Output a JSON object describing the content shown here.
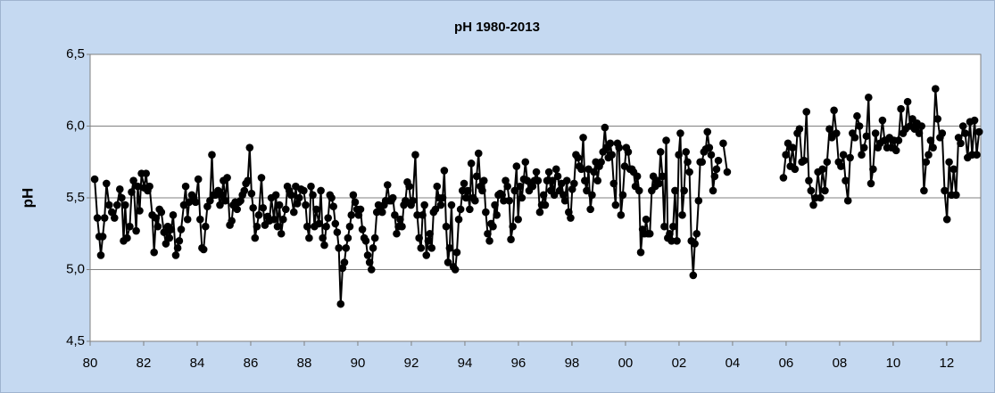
{
  "chart_data": {
    "type": "line",
    "title": "pH 1980-2013",
    "y_label": "pH",
    "color": "#000000",
    "grid": true,
    "markers": true,
    "xlim": [
      1980,
      2013.27
    ],
    "ylim": [
      4.5,
      6.5
    ],
    "xticks": [
      {
        "value": 1980,
        "label": "80"
      },
      {
        "value": 1982,
        "label": "82"
      },
      {
        "value": 1984,
        "label": "84"
      },
      {
        "value": 1986,
        "label": "86"
      },
      {
        "value": 1988,
        "label": "88"
      },
      {
        "value": 1990,
        "label": "90"
      },
      {
        "value": 1992,
        "label": "92"
      },
      {
        "value": 1994,
        "label": "94"
      },
      {
        "value": 1996,
        "label": "96"
      },
      {
        "value": 1998,
        "label": "98"
      },
      {
        "value": 2000,
        "label": "00"
      },
      {
        "value": 2002,
        "label": "02"
      },
      {
        "value": 2004,
        "label": "04"
      },
      {
        "value": 2006,
        "label": "06"
      },
      {
        "value": 2008,
        "label": "08"
      },
      {
        "value": 2010,
        "label": "10"
      },
      {
        "value": 2012,
        "label": "12"
      }
    ],
    "yticks": [
      {
        "value": 4.5,
        "label": "4,5"
      },
      {
        "value": 5.0,
        "label": "5,0"
      },
      {
        "value": 5.5,
        "label": "5,5"
      },
      {
        "value": 6.0,
        "label": "6,0"
      },
      {
        "value": 6.5,
        "label": "6,5"
      }
    ],
    "x": [
      1980.17,
      1980.27,
      1980.34,
      1980.4,
      1980.47,
      1980.54,
      1980.61,
      1980.71,
      1980.81,
      1980.91,
      1981.01,
      1981.11,
      1981.18,
      1981.25,
      1981.31,
      1981.38,
      1981.48,
      1981.55,
      1981.62,
      1981.72,
      1981.78,
      1981.85,
      1981.92,
      1982.02,
      1982.09,
      1982.15,
      1982.22,
      1982.32,
      1982.39,
      1982.46,
      1982.53,
      1982.59,
      1982.66,
      1982.76,
      1982.83,
      1982.9,
      1982.96,
      1983.03,
      1983.1,
      1983.2,
      1983.27,
      1983.33,
      1983.4,
      1983.5,
      1983.57,
      1983.64,
      1983.7,
      1983.8,
      1983.87,
      1983.94,
      1984.04,
      1984.11,
      1984.18,
      1984.24,
      1984.31,
      1984.38,
      1984.48,
      1984.55,
      1984.61,
      1984.68,
      1984.78,
      1984.85,
      1984.92,
      1984.98,
      1985.05,
      1985.12,
      1985.22,
      1985.29,
      1985.35,
      1985.42,
      1985.49,
      1985.56,
      1985.62,
      1985.69,
      1985.76,
      1985.82,
      1985.89,
      1985.96,
      1986.03,
      1986.09,
      1986.16,
      1986.23,
      1986.3,
      1986.4,
      1986.46,
      1986.53,
      1986.63,
      1986.7,
      1986.77,
      1986.87,
      1986.94,
      1987.0,
      1987.07,
      1987.14,
      1987.21,
      1987.31,
      1987.37,
      1987.44,
      1987.51,
      1987.61,
      1987.68,
      1987.74,
      1987.81,
      1987.88,
      1987.98,
      1988.05,
      1988.11,
      1988.18,
      1988.25,
      1988.32,
      1988.38,
      1988.45,
      1988.55,
      1988.62,
      1988.69,
      1988.75,
      1988.82,
      1988.89,
      1988.96,
      1989.02,
      1989.09,
      1989.16,
      1989.23,
      1989.29,
      1989.36,
      1989.43,
      1989.5,
      1989.56,
      1989.63,
      1989.7,
      1989.76,
      1989.83,
      1989.9,
      1989.97,
      1990.03,
      1990.1,
      1990.17,
      1990.24,
      1990.3,
      1990.37,
      1990.44,
      1990.51,
      1990.57,
      1990.64,
      1990.71,
      1990.77,
      1990.84,
      1990.91,
      1990.98,
      1991.04,
      1991.11,
      1991.18,
      1991.25,
      1991.31,
      1991.38,
      1991.45,
      1991.52,
      1991.58,
      1991.65,
      1991.72,
      1991.78,
      1991.85,
      1991.92,
      1991.99,
      1992.05,
      1992.15,
      1992.22,
      1992.29,
      1992.36,
      1992.42,
      1992.49,
      1992.56,
      1992.63,
      1992.69,
      1992.76,
      1992.83,
      1992.9,
      1992.96,
      1993.03,
      1993.1,
      1993.17,
      1993.23,
      1993.3,
      1993.37,
      1993.43,
      1993.5,
      1993.57,
      1993.64,
      1993.7,
      1993.77,
      1993.84,
      1993.91,
      1993.97,
      1994.04,
      1994.11,
      1994.18,
      1994.24,
      1994.31,
      1994.38,
      1994.44,
      1994.51,
      1994.58,
      1994.65,
      1994.71,
      1994.78,
      1994.85,
      1994.92,
      1994.98,
      1995.05,
      1995.12,
      1995.19,
      1995.25,
      1995.32,
      1995.39,
      1995.45,
      1995.52,
      1995.59,
      1995.66,
      1995.72,
      1995.79,
      1995.86,
      1995.93,
      1995.99,
      1996.06,
      1996.13,
      1996.2,
      1996.26,
      1996.33,
      1996.4,
      1996.46,
      1996.53,
      1996.6,
      1996.67,
      1996.73,
      1996.8,
      1996.87,
      1996.94,
      1997.0,
      1997.07,
      1997.14,
      1997.21,
      1997.27,
      1997.34,
      1997.41,
      1997.47,
      1997.54,
      1997.61,
      1997.68,
      1997.74,
      1997.81,
      1997.88,
      1997.95,
      1998.01,
      1998.08,
      1998.15,
      1998.22,
      1998.28,
      1998.35,
      1998.42,
      1998.48,
      1998.55,
      1998.62,
      1998.69,
      1998.75,
      1998.82,
      1998.89,
      1998.96,
      1999.02,
      1999.09,
      1999.16,
      1999.23,
      1999.29,
      1999.36,
      1999.43,
      1999.49,
      1999.56,
      1999.63,
      1999.7,
      1999.76,
      1999.83,
      1999.9,
      1999.97,
      2000.03,
      2000.1,
      2000.17,
      2000.24,
      2000.3,
      2000.37,
      2000.44,
      2000.51,
      2000.57,
      2000.64,
      2000.71,
      2000.77,
      2000.84,
      2000.91,
      2000.98,
      2001.04,
      2001.11,
      2001.18,
      2001.25,
      2001.31,
      2001.38,
      2001.45,
      2001.52,
      2001.58,
      2001.65,
      2001.72,
      2001.78,
      2001.85,
      2001.92,
      2001.99,
      2002.05,
      2002.12,
      2002.19,
      2002.26,
      2002.32,
      2002.39,
      2002.46,
      2002.53,
      2002.59,
      2002.66,
      2002.73,
      2002.79,
      2002.86,
      2002.93,
      2003.0,
      2003.06,
      2003.13,
      2003.2,
      2003.27,
      2003.33,
      2003.4,
      2003.47,
      2003.55,
      2003.65,
      2003.8,
      2004.8,
      2005.9,
      2005.99,
      2006.07,
      2006.16,
      2006.24,
      2006.33,
      2006.42,
      2006.5,
      2006.59,
      2006.67,
      2006.76,
      2006.85,
      2006.93,
      2007.02,
      2007.1,
      2007.19,
      2007.28,
      2007.36,
      2007.45,
      2007.53,
      2007.62,
      2007.71,
      2007.79,
      2007.88,
      2007.96,
      2008.05,
      2008.14,
      2008.22,
      2008.31,
      2008.39,
      2008.48,
      2008.57,
      2008.65,
      2008.74,
      2008.82,
      2008.91,
      2009.0,
      2009.08,
      2009.17,
      2009.25,
      2009.34,
      2009.43,
      2009.51,
      2009.6,
      2009.68,
      2009.77,
      2009.86,
      2009.94,
      2010.03,
      2010.11,
      2010.2,
      2010.29,
      2010.37,
      2010.46,
      2010.54,
      2010.63,
      2010.72,
      2010.8,
      2010.89,
      2010.97,
      2011.06,
      2011.15,
      2011.23,
      2011.32,
      2011.4,
      2011.49,
      2011.58,
      2011.66,
      2011.75,
      2011.83,
      2011.92,
      2012.01,
      2012.09,
      2012.18,
      2012.26,
      2012.35,
      2012.44,
      2012.52,
      2012.61,
      2012.69,
      2012.78,
      2012.87,
      2012.95,
      2013.04,
      2013.12,
      2013.21
    ],
    "values": [
      5.63,
      5.36,
      5.23,
      5.1,
      5.23,
      5.36,
      5.6,
      5.45,
      5.4,
      5.36,
      5.45,
      5.56,
      5.5,
      5.2,
      5.45,
      5.22,
      5.3,
      5.54,
      5.62,
      5.27,
      5.58,
      5.41,
      5.67,
      5.57,
      5.67,
      5.55,
      5.58,
      5.38,
      5.12,
      5.36,
      5.3,
      5.42,
      5.4,
      5.26,
      5.18,
      5.3,
      5.22,
      5.28,
      5.38,
      5.1,
      5.15,
      5.2,
      5.28,
      5.45,
      5.58,
      5.35,
      5.47,
      5.52,
      5.5,
      5.47,
      5.63,
      5.35,
      5.15,
      5.14,
      5.3,
      5.44,
      5.48,
      5.8,
      5.52,
      5.52,
      5.55,
      5.45,
      5.52,
      5.62,
      5.48,
      5.64,
      5.31,
      5.34,
      5.45,
      5.47,
      5.42,
      5.47,
      5.48,
      5.52,
      5.55,
      5.6,
      5.62,
      5.85,
      5.53,
      5.43,
      5.22,
      5.3,
      5.38,
      5.64,
      5.43,
      5.31,
      5.37,
      5.34,
      5.5,
      5.35,
      5.52,
      5.3,
      5.45,
      5.25,
      5.35,
      5.42,
      5.58,
      5.55,
      5.52,
      5.4,
      5.58,
      5.46,
      5.5,
      5.56,
      5.55,
      5.45,
      5.3,
      5.22,
      5.58,
      5.52,
      5.3,
      5.42,
      5.32,
      5.55,
      5.22,
      5.17,
      5.3,
      5.36,
      5.52,
      5.5,
      5.44,
      5.32,
      5.26,
      5.15,
      4.76,
      5.01,
      5.05,
      5.15,
      5.22,
      5.3,
      5.38,
      5.52,
      5.47,
      5.42,
      5.38,
      5.42,
      5.28,
      5.22,
      5.2,
      5.1,
      5.05,
      5.0,
      5.15,
      5.22,
      5.4,
      5.45,
      5.42,
      5.4,
      5.45,
      5.48,
      5.59,
      5.48,
      5.48,
      5.5,
      5.38,
      5.25,
      5.3,
      5.35,
      5.3,
      5.45,
      5.48,
      5.61,
      5.58,
      5.45,
      5.48,
      5.8,
      5.38,
      5.22,
      5.15,
      5.38,
      5.45,
      5.1,
      5.2,
      5.25,
      5.15,
      5.4,
      5.42,
      5.58,
      5.5,
      5.45,
      5.5,
      5.69,
      5.3,
      5.05,
      5.15,
      5.45,
      5.02,
      5.0,
      5.12,
      5.35,
      5.42,
      5.55,
      5.6,
      5.5,
      5.55,
      5.42,
      5.74,
      5.5,
      5.48,
      5.65,
      5.81,
      5.58,
      5.55,
      5.62,
      5.4,
      5.25,
      5.2,
      5.32,
      5.3,
      5.45,
      5.38,
      5.52,
      5.53,
      5.52,
      5.48,
      5.62,
      5.58,
      5.48,
      5.21,
      5.3,
      5.55,
      5.72,
      5.35,
      5.58,
      5.5,
      5.63,
      5.75,
      5.62,
      5.55,
      5.6,
      5.58,
      5.62,
      5.68,
      5.62,
      5.4,
      5.45,
      5.52,
      5.45,
      5.62,
      5.68,
      5.55,
      5.62,
      5.52,
      5.7,
      5.65,
      5.55,
      5.6,
      5.52,
      5.48,
      5.62,
      5.4,
      5.36,
      5.56,
      5.6,
      5.8,
      5.78,
      5.72,
      5.7,
      5.92,
      5.62,
      5.55,
      5.7,
      5.42,
      5.52,
      5.68,
      5.75,
      5.62,
      5.72,
      5.75,
      5.82,
      5.99,
      5.85,
      5.78,
      5.88,
      5.8,
      5.6,
      5.45,
      5.88,
      5.85,
      5.38,
      5.52,
      5.72,
      5.85,
      5.82,
      5.7,
      5.7,
      5.68,
      5.58,
      5.65,
      5.55,
      5.12,
      5.28,
      5.25,
      5.35,
      5.25,
      5.25,
      5.55,
      5.65,
      5.58,
      5.62,
      5.6,
      5.82,
      5.65,
      5.3,
      5.9,
      5.22,
      5.25,
      5.2,
      5.3,
      5.55,
      5.2,
      5.8,
      5.95,
      5.38,
      5.55,
      5.82,
      5.75,
      5.68,
      5.2,
      4.96,
      5.18,
      5.25,
      5.48,
      5.75,
      5.75,
      5.82,
      5.84,
      5.96,
      5.85,
      5.8,
      5.55,
      5.65,
      5.7,
      5.76,
      null,
      5.88,
      5.68,
      null,
      5.64,
      5.8,
      5.88,
      5.72,
      5.85,
      5.7,
      5.95,
      5.98,
      5.75,
      5.76,
      6.1,
      5.62,
      5.55,
      5.45,
      5.5,
      5.68,
      5.5,
      5.7,
      5.55,
      5.75,
      5.98,
      5.92,
      6.11,
      5.95,
      5.75,
      5.72,
      5.8,
      5.62,
      5.48,
      5.78,
      5.95,
      5.92,
      6.07,
      6.0,
      5.8,
      5.85,
      5.93,
      6.2,
      5.6,
      5.7,
      5.95,
      5.85,
      5.88,
      6.04,
      5.9,
      5.85,
      5.92,
      5.85,
      5.9,
      5.83,
      5.9,
      6.12,
      5.95,
      5.98,
      6.17,
      6.0,
      6.05,
      5.98,
      6.02,
      5.95,
      6.0,
      5.55,
      5.75,
      5.8,
      5.9,
      5.85,
      6.26,
      6.05,
      5.92,
      5.95,
      5.55,
      5.35,
      5.75,
      5.52,
      5.7,
      5.52,
      5.92,
      5.88,
      6.0,
      5.95,
      5.78,
      6.03,
      5.8,
      6.04,
      5.8,
      5.96
    ]
  }
}
